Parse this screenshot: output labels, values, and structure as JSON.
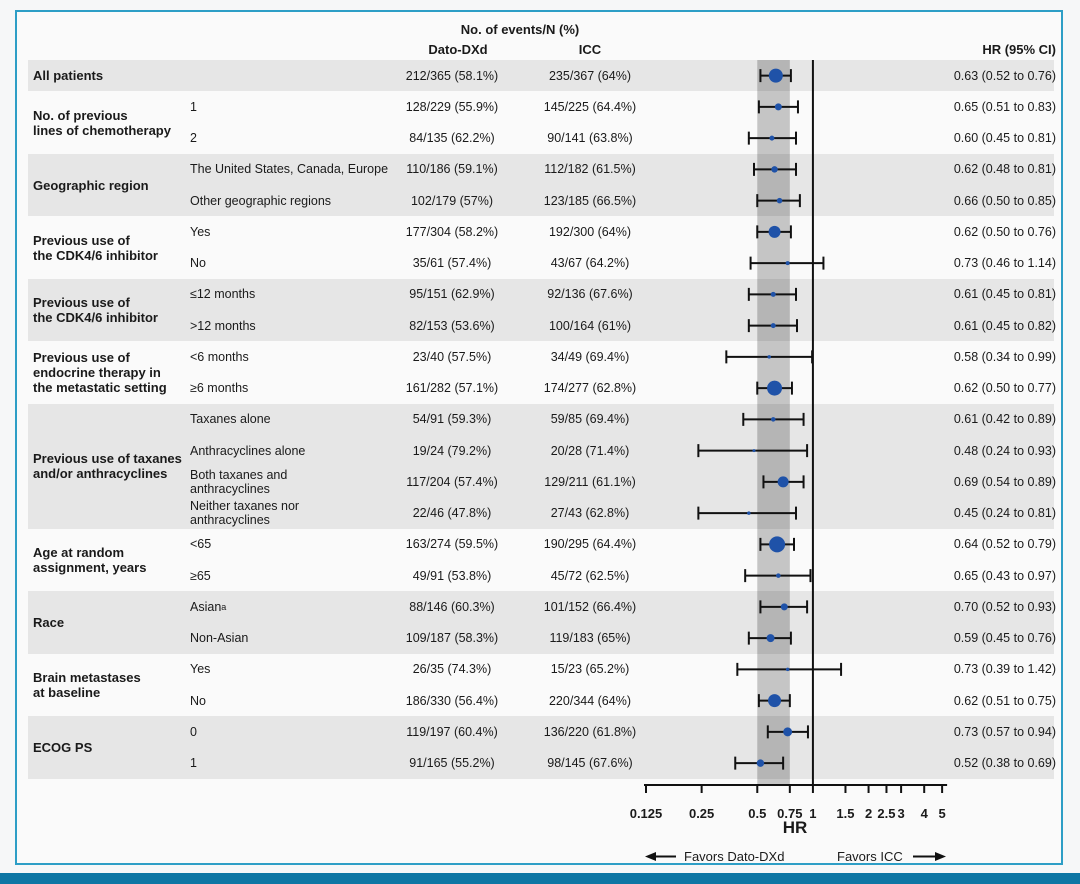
{
  "colors": {
    "marker_blue": "#1f52a8",
    "row_shade": "#e6e6e6",
    "band_overlay": "rgba(0,0,0,0.21)",
    "line_black": "#111111",
    "box_border_blue": "#2d9ec6",
    "bottom_bar_blue": "#0e76a4",
    "figure_bg": "#fafafa"
  },
  "chart_data": {
    "type": "forest",
    "title": "No. of events/N (%)",
    "columns": [
      "Dato-DXd",
      "ICC",
      "HR (95% CI)"
    ],
    "xlabel": "HR",
    "x_scale": "log",
    "x_base": 0.125,
    "x_ticks": [
      0.125,
      0.25,
      0.5,
      0.75,
      1,
      1.5,
      2,
      2.5,
      3,
      4,
      5
    ],
    "x_tick_labels": [
      "0.125",
      "0.25",
      "0.5",
      "0.75",
      "1",
      "1.5",
      "2",
      "2.5",
      "3",
      "4",
      "5"
    ],
    "reference_line": 1,
    "shaded_band": [
      0.5,
      0.75
    ],
    "favors": {
      "left": "Favors Dato-DXd",
      "right": "Favors ICC"
    },
    "sections": [
      {
        "label": "All patients",
        "shaded": true,
        "rows": [
          {
            "subgroup": "",
            "dato": "212/365 (58.1%)",
            "icc": "235/367 (64%)",
            "hr": 0.63,
            "ci_low": 0.52,
            "ci_high": 0.76,
            "hr_label": "0.63 (0.52 to 0.76)",
            "marker": 14
          }
        ]
      },
      {
        "label": "No. of previous\nlines of chemotherapy",
        "shaded": false,
        "rows": [
          {
            "subgroup": "1",
            "dato": "128/229 (55.9%)",
            "icc": "145/225 (64.4%)",
            "hr": 0.65,
            "ci_low": 0.51,
            "ci_high": 0.83,
            "hr_label": "0.65 (0.51 to 0.83)",
            "marker": 7
          },
          {
            "subgroup": "2",
            "dato": "84/135 (62.2%)",
            "icc": "90/141 (63.8%)",
            "hr": 0.6,
            "ci_low": 0.45,
            "ci_high": 0.81,
            "hr_label": "0.60 (0.45 to 0.81)",
            "marker": 5
          }
        ]
      },
      {
        "label": "Geographic region",
        "shaded": true,
        "rows": [
          {
            "subgroup": "The United States, Canada, Europe",
            "dato": "110/186 (59.1%)",
            "icc": "112/182 (61.5%)",
            "hr": 0.62,
            "ci_low": 0.48,
            "ci_high": 0.81,
            "hr_label": "0.62 (0.48 to 0.81)",
            "marker": 6.5
          },
          {
            "subgroup": "Other geographic regions",
            "dato": "102/179 (57%)",
            "icc": "123/185 (66.5%)",
            "hr": 0.66,
            "ci_low": 0.5,
            "ci_high": 0.85,
            "hr_label": "0.66 (0.50 to 0.85)",
            "marker": 5.5
          }
        ]
      },
      {
        "label": "Previous use of\nthe CDK4/6 inhibitor",
        "shaded": false,
        "rows": [
          {
            "subgroup": "Yes",
            "dato": "177/304 (58.2%)",
            "icc": "192/300 (64%)",
            "hr": 0.62,
            "ci_low": 0.5,
            "ci_high": 0.76,
            "hr_label": "0.62 (0.50 to 0.76)",
            "marker": 12
          },
          {
            "subgroup": "No",
            "dato": "35/61 (57.4%)",
            "icc": "43/67 (64.2%)",
            "hr": 0.73,
            "ci_low": 0.46,
            "ci_high": 1.14,
            "hr_label": "0.73 (0.46 to 1.14)",
            "marker": 4
          }
        ]
      },
      {
        "label": "Previous use of\nthe CDK4/6 inhibitor",
        "shaded": true,
        "rows": [
          {
            "subgroup": "≤12 months",
            "dato": "95/151 (62.9%)",
            "icc": "92/136 (67.6%)",
            "hr": 0.61,
            "ci_low": 0.45,
            "ci_high": 0.81,
            "hr_label": "0.61 (0.45 to 0.81)",
            "marker": 5
          },
          {
            "subgroup": ">12 months",
            "dato": "82/153 (53.6%)",
            "icc": "100/164 (61%)",
            "hr": 0.61,
            "ci_low": 0.45,
            "ci_high": 0.82,
            "hr_label": "0.61 (0.45 to 0.82)",
            "marker": 5
          }
        ]
      },
      {
        "label": "Previous use of\nendocrine therapy in\nthe metastatic setting",
        "shaded": false,
        "rows": [
          {
            "subgroup": "<6 months",
            "dato": "23/40 (57.5%)",
            "icc": "34/49 (69.4%)",
            "hr": 0.58,
            "ci_low": 0.34,
            "ci_high": 0.99,
            "hr_label": "0.58 (0.34 to 0.99)",
            "marker": 3.5
          },
          {
            "subgroup": "≥6 months",
            "dato": "161/282 (57.1%)",
            "icc": "174/277 (62.8%)",
            "hr": 0.62,
            "ci_low": 0.5,
            "ci_high": 0.77,
            "hr_label": "0.62 (0.50 to 0.77)",
            "marker": 15
          }
        ]
      },
      {
        "label": "Previous use of taxanes\nand/or anthracyclines",
        "shaded": true,
        "rows": [
          {
            "subgroup": "Taxanes alone",
            "dato": "54/91 (59.3%)",
            "icc": "59/85 (69.4%)",
            "hr": 0.61,
            "ci_low": 0.42,
            "ci_high": 0.89,
            "hr_label": "0.61 (0.42 to 0.89)",
            "marker": 4.5
          },
          {
            "subgroup": "Anthracyclines alone",
            "dato": "19/24 (79.2%)",
            "icc": "20/28 (71.4%)",
            "hr": 0.48,
            "ci_low": 0.24,
            "ci_high": 0.93,
            "hr_label": "0.48 (0.24 to 0.93)",
            "marker": 3
          },
          {
            "subgroup": "Both taxanes and\nanthracyclines",
            "dato": "117/204 (57.4%)",
            "icc": "129/211 (61.1%)",
            "hr": 0.69,
            "ci_low": 0.54,
            "ci_high": 0.89,
            "hr_label": "0.69 (0.54 to 0.89)",
            "marker": 11
          },
          {
            "subgroup": "Neither taxanes nor\nanthracyclines",
            "dato": "22/46 (47.8%)",
            "icc": "27/43 (62.8%)",
            "hr": 0.45,
            "ci_low": 0.24,
            "ci_high": 0.81,
            "hr_label": "0.45 (0.24 to 0.81)",
            "marker": 3.5
          }
        ]
      },
      {
        "label": "Age at random\nassignment, years",
        "shaded": false,
        "rows": [
          {
            "subgroup": "<65",
            "dato": "163/274 (59.5%)",
            "icc": "190/295 (64.4%)",
            "hr": 0.64,
            "ci_low": 0.52,
            "ci_high": 0.79,
            "hr_label": "0.64 (0.52 to 0.79)",
            "marker": 16
          },
          {
            "subgroup": "≥65",
            "dato": "49/91 (53.8%)",
            "icc": "45/72 (62.5%)",
            "hr": 0.65,
            "ci_low": 0.43,
            "ci_high": 0.97,
            "hr_label": "0.65 (0.43 to 0.97)",
            "marker": 4.5
          }
        ]
      },
      {
        "label": "Race",
        "shaded": true,
        "rows": [
          {
            "subgroup": "Asian",
            "sup": "a",
            "dato": "88/146 (60.3%)",
            "icc": "101/152 (66.4%)",
            "hr": 0.7,
            "ci_low": 0.52,
            "ci_high": 0.93,
            "hr_label": "0.70 (0.52 to 0.93)",
            "marker": 7
          },
          {
            "subgroup": "Non-Asian",
            "dato": "109/187 (58.3%)",
            "icc": "119/183 (65%)",
            "hr": 0.59,
            "ci_low": 0.45,
            "ci_high": 0.76,
            "hr_label": "0.59 (0.45 to 0.76)",
            "marker": 8
          }
        ]
      },
      {
        "label": "Brain metastases\nat baseline",
        "shaded": false,
        "rows": [
          {
            "subgroup": "Yes",
            "dato": "26/35 (74.3%)",
            "icc": "15/23 (65.2%)",
            "hr": 0.73,
            "ci_low": 0.39,
            "ci_high": 1.42,
            "hr_label": "0.73 (0.39 to 1.42)",
            "marker": 3.5
          },
          {
            "subgroup": "No",
            "dato": "186/330 (56.4%)",
            "icc": "220/344 (64%)",
            "hr": 0.62,
            "ci_low": 0.51,
            "ci_high": 0.75,
            "hr_label": "0.62 (0.51 to 0.75)",
            "marker": 13
          }
        ]
      },
      {
        "label": "ECOG PS",
        "shaded": true,
        "rows": [
          {
            "subgroup": "0",
            "dato": "119/197 (60.4%)",
            "icc": "136/220 (61.8%)",
            "hr": 0.73,
            "ci_low": 0.57,
            "ci_high": 0.94,
            "hr_label": "0.73 (0.57 to 0.94)",
            "marker": 9
          },
          {
            "subgroup": "1",
            "dato": "91/165 (55.2%)",
            "icc": "98/145 (67.6%)",
            "hr": 0.52,
            "ci_low": 0.38,
            "ci_high": 0.69,
            "hr_label": "0.52 (0.38 to 0.69)",
            "marker": 7.5
          }
        ]
      }
    ]
  }
}
